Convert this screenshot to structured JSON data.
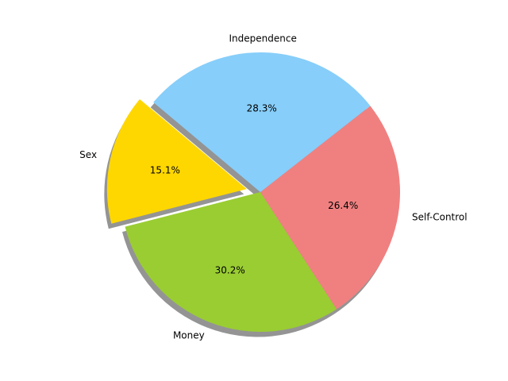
{
  "chart_data": {
    "type": "pie",
    "title": "",
    "shadow": true,
    "start_angle_deg": 140,
    "direction": "counterclockwise",
    "slices": [
      {
        "label": "Sex",
        "value": 15.1,
        "pct_label": "15.1%",
        "color": "#ffd700",
        "explode": 0.1
      },
      {
        "label": "Money",
        "value": 30.2,
        "pct_label": "30.2%",
        "color": "#9acd32",
        "explode": 0
      },
      {
        "label": "Self-Control",
        "value": 26.4,
        "pct_label": "26.4%",
        "color": "#f08080",
        "explode": 0
      },
      {
        "label": "Independence",
        "value": 28.3,
        "pct_label": "28.3%",
        "color": "#87cefa",
        "explode": 0
      }
    ]
  }
}
